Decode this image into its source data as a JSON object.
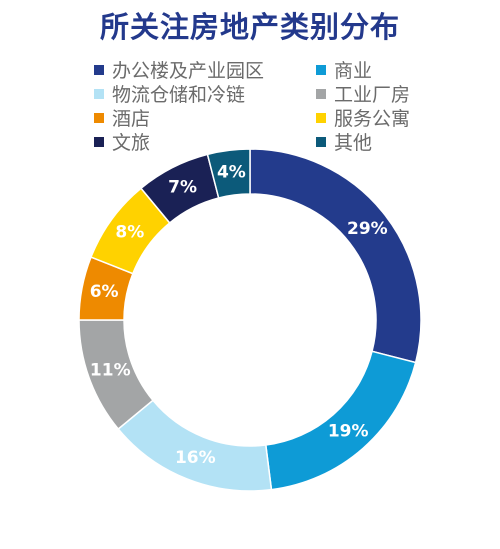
{
  "chart_data": {
    "type": "pie",
    "variant": "donut",
    "title": "所关注房地产类别分布",
    "categories": [
      "办公楼及产业园区",
      "商业",
      "物流仓储和冷链",
      "工业厂房",
      "酒店",
      "服务公寓",
      "文旅",
      "其他"
    ],
    "values": [
      29,
      19,
      16,
      11,
      6,
      8,
      7,
      4
    ],
    "labels": [
      "29%",
      "19%",
      "16%",
      "11%",
      "6%",
      "8%",
      "7%",
      "4%"
    ],
    "colors": [
      "#233b8c",
      "#0e9bd6",
      "#b3e2f5",
      "#a3a5a6",
      "#ee8a00",
      "#ffd200",
      "#1a2155",
      "#0c5a7a"
    ],
    "label_colors": [
      "#ffffff",
      "#ffffff",
      "#ffffff",
      "#ffffff",
      "#ffffff",
      "#ffffff",
      "#ffffff",
      "#ffffff"
    ],
    "legend_position": "top",
    "start_angle_deg": 0,
    "direction": "clockwise"
  }
}
